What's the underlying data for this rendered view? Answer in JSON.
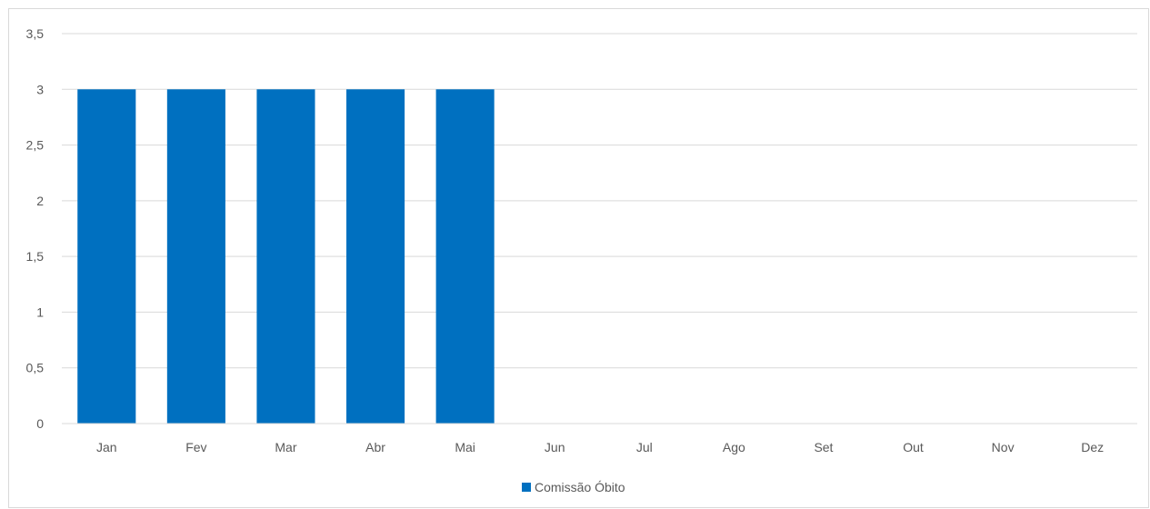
{
  "chart_data": {
    "type": "bar",
    "categories": [
      "Jan",
      "Fev",
      "Mar",
      "Abr",
      "Mai",
      "Jun",
      "Jul",
      "Ago",
      "Set",
      "Out",
      "Nov",
      "Dez"
    ],
    "series": [
      {
        "name": "Comissão Óbito",
        "values": [
          3,
          3,
          3,
          3,
          3,
          null,
          null,
          null,
          null,
          null,
          null,
          null
        ],
        "color": "#0070c0"
      }
    ],
    "ylim": [
      0,
      3.5
    ],
    "yticks": [
      "0",
      "0,5",
      "1",
      "1,5",
      "2",
      "2,5",
      "3",
      "3,5"
    ],
    "grid": true,
    "legend_position": "bottom"
  },
  "colors": {
    "bar": "#0070c0",
    "grid": "#d9d9d9",
    "axis": "#d9d9d9",
    "text": "#595959"
  }
}
